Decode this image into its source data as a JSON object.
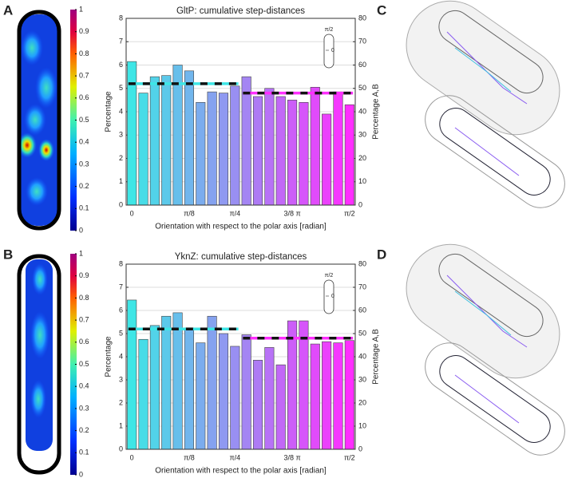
{
  "panel_labels": [
    "A",
    "B",
    "C",
    "D"
  ],
  "colorbar_ticks": [
    0,
    0.1,
    0.2,
    0.3,
    0.4,
    0.5,
    0.6,
    0.7,
    0.8,
    0.9,
    1
  ],
  "chart_data": [
    {
      "type": "bar",
      "title": "GltP: cumulative step-distances",
      "x_label": "Orientation with respect to the polar axis [radian]",
      "y_label": "Percentage",
      "y2_label": "Percentage A,B",
      "inset_labels": [
        "π/2",
        "0"
      ],
      "categories": [
        "0",
        null,
        null,
        null,
        null,
        "π/8",
        null,
        null,
        null,
        "π/4",
        null,
        null,
        null,
        null,
        "3/8 π",
        null,
        null,
        null,
        null,
        "π/2"
      ],
      "values": [
        6.15,
        4.8,
        5.5,
        5.55,
        6.0,
        5.75,
        4.4,
        4.85,
        4.8,
        5.1,
        5.5,
        4.65,
        5.0,
        4.65,
        4.5,
        4.4,
        5.05,
        3.9,
        4.85,
        4.3
      ],
      "color_start": "#3ee6e6",
      "color_end": "#ff2eff",
      "ylim": [
        0,
        8
      ],
      "yticks": [
        0,
        1,
        2,
        3,
        4,
        5,
        6,
        7,
        8
      ],
      "y2lim": [
        0,
        80
      ],
      "y2ticks": [
        0,
        10,
        20,
        30,
        40,
        50,
        60,
        70,
        80
      ],
      "grid": true,
      "reference_lines": [
        {
          "value": 52,
          "axis": "y2",
          "from": 0,
          "to": 9,
          "color": "#3ee6e6"
        },
        {
          "value": 48,
          "axis": "y2",
          "from": 10,
          "to": 19,
          "color": "#ff2eff"
        }
      ]
    },
    {
      "type": "bar",
      "title": "YknZ: cumulative step-distances",
      "x_label": "Orientation with respect to the polar axis [radian]",
      "y_label": "Percentage",
      "y2_label": "Percentage A,B",
      "inset_labels": [
        "π/2",
        "0"
      ],
      "categories": [
        "0",
        null,
        null,
        null,
        null,
        "π/8",
        null,
        null,
        null,
        "π/4",
        null,
        null,
        null,
        null,
        "3/8 π",
        null,
        null,
        null,
        null,
        "π/2"
      ],
      "values": [
        6.45,
        4.75,
        5.35,
        5.75,
        5.9,
        5.25,
        4.6,
        5.75,
        5.0,
        4.45,
        4.95,
        3.85,
        4.4,
        3.65,
        5.55,
        5.55,
        4.55,
        4.65,
        4.6,
        4.7
      ],
      "color_start": "#3ee6e6",
      "color_end": "#ff2eff",
      "ylim": [
        0,
        8
      ],
      "yticks": [
        0,
        1,
        2,
        3,
        4,
        5,
        6,
        7,
        8
      ],
      "y2lim": [
        0,
        80
      ],
      "y2ticks": [
        0,
        10,
        20,
        30,
        40,
        50,
        60,
        70,
        80
      ],
      "grid": true,
      "reference_lines": [
        {
          "value": 52,
          "axis": "y2",
          "from": 0,
          "to": 9,
          "color": "#3ee6e6"
        },
        {
          "value": 48,
          "axis": "y2",
          "from": 10,
          "to": 19,
          "color": "#ff2eff"
        }
      ]
    }
  ]
}
